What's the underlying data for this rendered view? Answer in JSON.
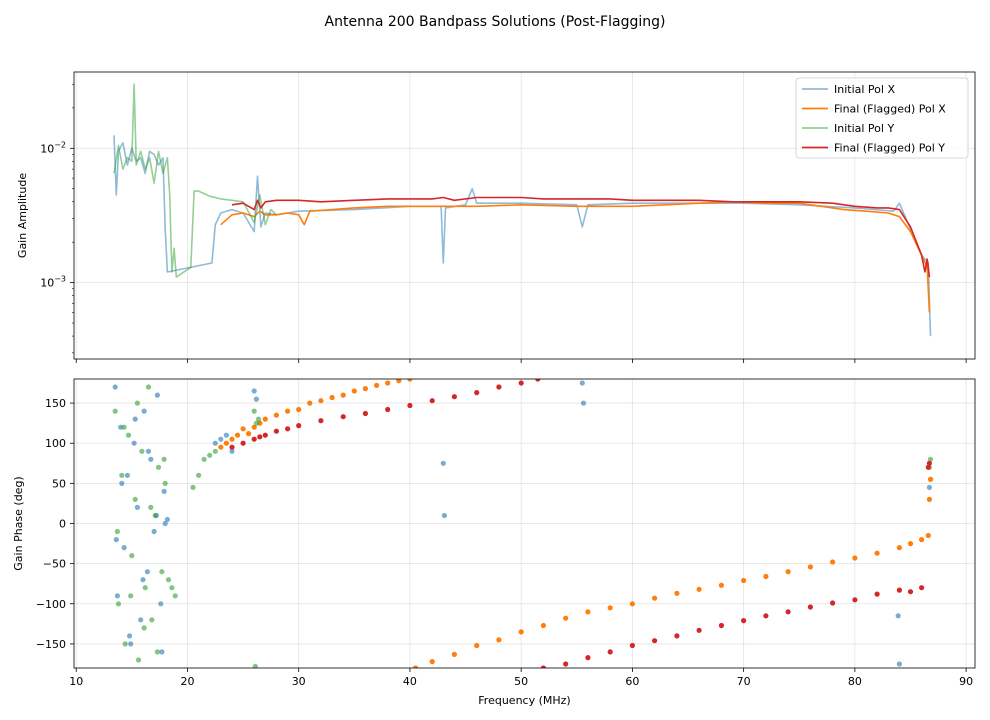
{
  "figure": {
    "title": "Antenna 200 Bandpass Solutions (Post-Flagging)"
  },
  "chart_data": [
    {
      "type": "line",
      "panel": "top",
      "yscale": "log",
      "ylabel": "Gain Amplitude",
      "xlabel": "",
      "xlim": [
        9.8,
        90.8
      ],
      "ylim": [
        0.00027,
        0.037
      ],
      "grid": true,
      "legend_position": "top-right",
      "yticks": [
        {
          "value": 0.01,
          "base": "10",
          "exp": "−2"
        },
        {
          "value": 0.001,
          "base": "10",
          "exp": "−3"
        }
      ],
      "series": [
        {
          "name": "Initial Pol X",
          "color": "#1f77b4",
          "opacity": 0.5,
          "x": [
            13.4,
            13.6,
            13.8,
            14.2,
            14.6,
            15.0,
            15.4,
            15.8,
            16.2,
            16.6,
            17.0,
            17.4,
            17.8,
            18.0,
            18.2,
            22.2,
            22.5,
            23.0,
            23.5,
            24.0,
            25.0,
            26.0,
            26.3,
            26.6,
            27.0,
            28.0,
            30.0,
            35.0,
            40.0,
            42.8,
            43.0,
            43.2,
            45.0,
            45.6,
            46.0,
            50.0,
            55.0,
            55.5,
            56.0,
            60.0,
            65.0,
            70.0,
            75.0,
            80.0,
            83.5,
            84.0,
            85.0,
            86.0,
            86.6,
            86.8
          ],
          "y": [
            0.0125,
            0.0045,
            0.0095,
            0.011,
            0.0075,
            0.01,
            0.008,
            0.0085,
            0.0065,
            0.0095,
            0.009,
            0.0075,
            0.0085,
            0.0025,
            0.0012,
            0.0014,
            0.0027,
            0.0033,
            0.0034,
            0.0035,
            0.0033,
            0.0024,
            0.0062,
            0.0026,
            0.0033,
            0.0032,
            0.0034,
            0.0035,
            0.0037,
            0.0037,
            0.0014,
            0.0036,
            0.0038,
            0.005,
            0.0039,
            0.0039,
            0.0038,
            0.0026,
            0.0038,
            0.0039,
            0.0039,
            0.0039,
            0.0038,
            0.0036,
            0.0034,
            0.0039,
            0.0025,
            0.0016,
            0.0014,
            0.0004
          ]
        },
        {
          "name": "Final (Flagged) Pol X",
          "color": "#ff7f0e",
          "opacity": 1,
          "x": [
            23.0,
            24.0,
            25.0,
            26.0,
            26.5,
            27.0,
            28.0,
            29.0,
            30.0,
            30.5,
            31.0,
            33.0,
            35.0,
            38.0,
            40.0,
            43.0,
            46.0,
            50.0,
            55.0,
            58.0,
            60.0,
            63.0,
            66.0,
            69.0,
            72.0,
            75.0,
            77.0,
            79.0,
            81.0,
            83.0,
            84.0,
            85.0,
            86.0,
            86.5,
            86.7
          ],
          "y": [
            0.0027,
            0.0032,
            0.0033,
            0.0031,
            0.0034,
            0.0032,
            0.0032,
            0.0033,
            0.0032,
            0.0027,
            0.0034,
            0.0035,
            0.0036,
            0.0037,
            0.0037,
            0.0037,
            0.0037,
            0.0038,
            0.0037,
            0.0037,
            0.0037,
            0.0038,
            0.0039,
            0.004,
            0.0039,
            0.0039,
            0.0037,
            0.0035,
            0.0034,
            0.0033,
            0.0031,
            0.0024,
            0.0016,
            0.0013,
            0.0006
          ]
        },
        {
          "name": "Initial Pol Y",
          "color": "#2ca02c",
          "opacity": 0.5,
          "x": [
            13.4,
            13.8,
            14.2,
            14.6,
            15.0,
            15.2,
            15.4,
            15.8,
            16.2,
            16.6,
            17.0,
            17.4,
            17.8,
            18.2,
            18.4,
            18.6,
            18.8,
            19.0,
            20.3,
            20.6,
            21.0,
            22.0,
            23.0,
            24.0,
            25.0,
            26.0,
            26.5,
            27.0,
            27.5,
            28.0
          ],
          "y": [
            0.0065,
            0.0105,
            0.007,
            0.0085,
            0.008,
            0.03,
            0.0075,
            0.0095,
            0.007,
            0.0085,
            0.0055,
            0.0095,
            0.0065,
            0.0085,
            0.0045,
            0.0012,
            0.0018,
            0.0011,
            0.0013,
            0.0048,
            0.0048,
            0.0044,
            0.0042,
            0.0041,
            0.004,
            0.0028,
            0.0045,
            0.0027,
            0.0035,
            0.0032
          ]
        },
        {
          "name": "Final (Flagged) Pol Y",
          "color": "#d62728",
          "opacity": 1,
          "x": [
            24.0,
            25.0,
            26.0,
            26.3,
            26.6,
            27.0,
            28.0,
            30.0,
            32.0,
            35.0,
            38.0,
            40.0,
            42.0,
            43.0,
            44.0,
            46.0,
            48.0,
            50.0,
            52.0,
            55.0,
            58.0,
            60.0,
            63.0,
            66.0,
            69.0,
            72.0,
            75.0,
            78.0,
            80.0,
            82.0,
            83.0,
            84.0,
            85.0,
            86.0,
            86.3,
            86.5,
            86.7
          ],
          "y": [
            0.0038,
            0.0039,
            0.0035,
            0.0041,
            0.0036,
            0.004,
            0.0041,
            0.0041,
            0.004,
            0.0041,
            0.0042,
            0.0042,
            0.0042,
            0.0043,
            0.0041,
            0.0043,
            0.0043,
            0.0043,
            0.0042,
            0.0042,
            0.0042,
            0.0041,
            0.0041,
            0.0041,
            0.004,
            0.004,
            0.004,
            0.0039,
            0.0037,
            0.0036,
            0.0036,
            0.0035,
            0.0026,
            0.0016,
            0.0012,
            0.0015,
            0.0011
          ]
        }
      ]
    },
    {
      "type": "scatter",
      "panel": "bottom",
      "ylabel": "Gain Phase (deg)",
      "xlabel": "Frequency (MHz)",
      "xlim": [
        9.8,
        90.8
      ],
      "ylim": [
        -180,
        180
      ],
      "grid": true,
      "xticks": [
        10,
        20,
        30,
        40,
        50,
        60,
        70,
        80,
        90
      ],
      "yticks": [
        150,
        100,
        50,
        0,
        -50,
        -100,
        -150
      ],
      "series": [
        {
          "name": "Initial Pol X",
          "color": "#1f77b4",
          "opacity": 0.6,
          "x": [
            13.5,
            13.7,
            14.0,
            14.3,
            14.6,
            14.9,
            15.2,
            15.5,
            15.8,
            16.1,
            16.4,
            16.7,
            17.0,
            17.3,
            17.6,
            17.9,
            13.6,
            14.1,
            14.8,
            15.3,
            16.0,
            16.5,
            17.2,
            17.7,
            18.0,
            18.2,
            22.5,
            23.0,
            23.5,
            24.0,
            26.0,
            26.2,
            43.0,
            43.1,
            55.5,
            55.6,
            83.9,
            84.0,
            86.7,
            86.8
          ],
          "y": [
            170,
            -90,
            120,
            -30,
            60,
            -150,
            100,
            20,
            -120,
            140,
            -60,
            80,
            -10,
            160,
            -100,
            40,
            -20,
            50,
            -140,
            130,
            -70,
            90,
            10,
            -160,
            0,
            5,
            100,
            105,
            110,
            90,
            165,
            155,
            75,
            10,
            175,
            150,
            -115,
            -175,
            45,
            55
          ]
        },
        {
          "name": "Final (Flagged) Pol X",
          "color": "#ff7f0e",
          "opacity": 1,
          "x": [
            23.0,
            23.5,
            24.0,
            24.5,
            25.0,
            25.5,
            26.0,
            26.5,
            27.0,
            28.0,
            29.0,
            30.0,
            31.0,
            32.0,
            33.0,
            34.0,
            35.0,
            36.0,
            37.0,
            38.0,
            39.0,
            40.0,
            40.5,
            42.0,
            44.0,
            46.0,
            48.0,
            50.0,
            52.0,
            54.0,
            56.0,
            58.0,
            60.0,
            62.0,
            64.0,
            66.0,
            68.0,
            70.0,
            72.0,
            74.0,
            76.0,
            78.0,
            80.0,
            82.0,
            84.0,
            85.0,
            86.0,
            86.6,
            86.7,
            86.8
          ],
          "y": [
            95,
            100,
            105,
            110,
            118,
            112,
            120,
            125,
            130,
            135,
            140,
            142,
            150,
            153,
            157,
            160,
            165,
            168,
            172,
            175,
            178,
            180,
            -180,
            -172,
            -163,
            -152,
            -145,
            -135,
            -127,
            -118,
            -110,
            -105,
            -100,
            -93,
            -87,
            -82,
            -77,
            -71,
            -66,
            -60,
            -54,
            -48,
            -43,
            -37,
            -30,
            -25,
            -20,
            -15,
            30,
            55
          ]
        },
        {
          "name": "Initial Pol Y",
          "color": "#2ca02c",
          "opacity": 0.6,
          "x": [
            13.5,
            13.8,
            14.1,
            14.4,
            14.7,
            15.0,
            15.3,
            15.6,
            15.9,
            16.2,
            16.5,
            16.8,
            17.1,
            17.4,
            17.7,
            18.0,
            13.7,
            14.3,
            14.9,
            15.5,
            16.1,
            16.7,
            17.3,
            17.9,
            18.3,
            18.6,
            18.9,
            20.5,
            21.0,
            21.5,
            22.0,
            22.5,
            26.0,
            26.2,
            26.4,
            86.7,
            86.8,
            26.1
          ],
          "y": [
            140,
            -100,
            60,
            -150,
            110,
            -40,
            30,
            -170,
            90,
            -80,
            170,
            -120,
            10,
            70,
            -60,
            50,
            -10,
            120,
            -90,
            150,
            -130,
            20,
            -160,
            80,
            -70,
            -80,
            -90,
            45,
            60,
            80,
            85,
            90,
            140,
            125,
            130,
            70,
            80,
            -178
          ]
        },
        {
          "name": "Final (Flagged) Pol Y",
          "color": "#d62728",
          "opacity": 1,
          "x": [
            24.0,
            25.0,
            26.0,
            26.5,
            27.0,
            28.0,
            29.0,
            30.0,
            32.0,
            34.0,
            36.0,
            38.0,
            40.0,
            42.0,
            44.0,
            46.0,
            48.0,
            50.0,
            51.5,
            52.0,
            54.0,
            56.0,
            58.0,
            60.0,
            62.0,
            64.0,
            66.0,
            68.0,
            70.0,
            72.0,
            74.0,
            76.0,
            78.0,
            80.0,
            82.0,
            84.0,
            85.0,
            86.0,
            86.6,
            86.7
          ],
          "y": [
            95,
            100,
            105,
            108,
            110,
            115,
            118,
            122,
            128,
            133,
            137,
            142,
            147,
            153,
            158,
            163,
            170,
            175,
            180,
            -180,
            -175,
            -167,
            -160,
            -152,
            -146,
            -140,
            -133,
            -127,
            -121,
            -115,
            -110,
            -104,
            -99,
            -95,
            -88,
            -83,
            -85,
            -80,
            70,
            75
          ]
        }
      ]
    }
  ]
}
